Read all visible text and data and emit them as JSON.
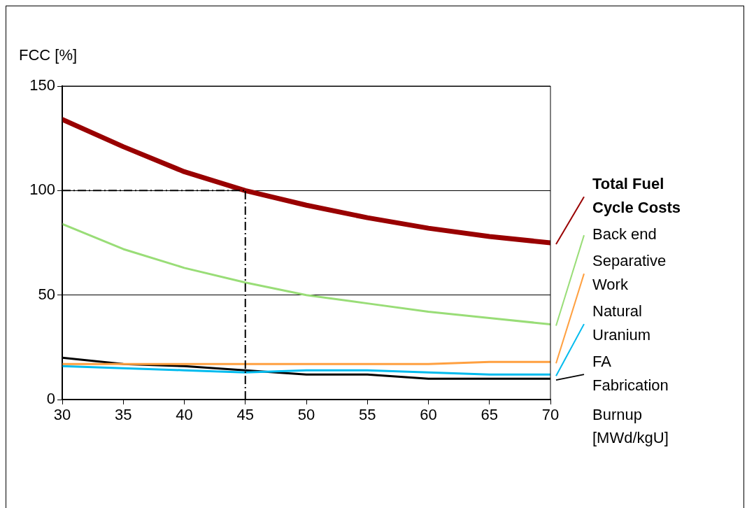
{
  "chart_data": {
    "type": "line",
    "ylabel": "FCC [%]",
    "xlabel": "Burnup [MWd/kgU]",
    "x": [
      30,
      35,
      40,
      45,
      50,
      55,
      60,
      65,
      70
    ],
    "series": [
      {
        "name": "Total Fuel Cycle Costs",
        "color": "#990000",
        "values": [
          134,
          121,
          109,
          100,
          93,
          87,
          82,
          78,
          75
        ]
      },
      {
        "name": "Back end",
        "color": "#99dd77",
        "values": [
          84,
          72,
          63,
          56,
          50,
          46,
          42,
          39,
          36
        ]
      },
      {
        "name": "Separative Work",
        "color": "#ffa040",
        "values": [
          17,
          17,
          17,
          17,
          17,
          17,
          17,
          18,
          18
        ]
      },
      {
        "name": "Natural Uranium",
        "color": "#00bbee",
        "values": [
          16,
          15,
          14,
          13,
          14,
          14,
          13,
          12,
          12
        ]
      },
      {
        "name": "FA Fabrication",
        "color": "#000000",
        "values": [
          20,
          17,
          16,
          14,
          12,
          12,
          10,
          10,
          10
        ]
      }
    ],
    "xlim": [
      30,
      70
    ],
    "xticks": [
      30,
      35,
      40,
      45,
      50,
      55,
      60,
      65,
      70
    ],
    "ylim": [
      0,
      150
    ],
    "yticks": [
      0,
      50,
      100,
      150
    ],
    "ref_lines": [
      {
        "axis": "y",
        "value": 100,
        "color": "#000000",
        "line_style": "dashed"
      },
      {
        "axis": "x",
        "value": 45,
        "color": "#000000",
        "line_style": "dashed"
      }
    ],
    "grid": "y",
    "legend": "right",
    "marker": "none",
    "line_style": "solid"
  }
}
